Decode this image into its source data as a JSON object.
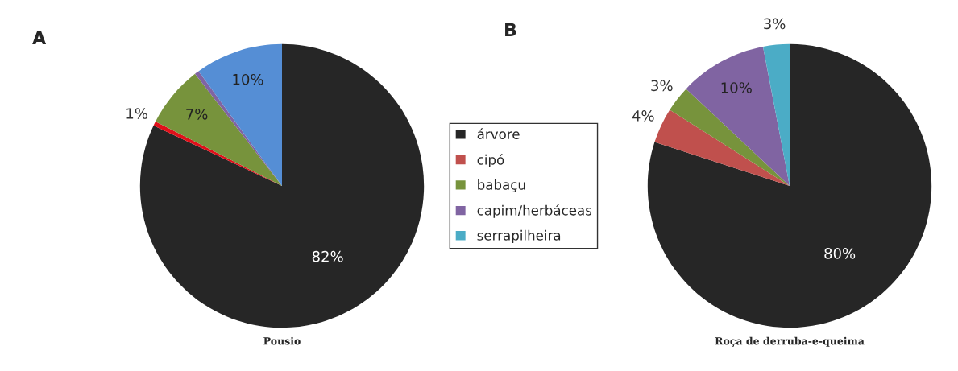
{
  "chart_data": [
    {
      "type": "pie",
      "title": "Pousio",
      "annotations": [
        "A"
      ],
      "categories": [
        null,
        null,
        null,
        null,
        null
      ],
      "values": [
        82,
        0.5,
        7,
        0.5,
        10
      ],
      "value_labels": [
        "82%",
        "1%",
        "7%",
        null,
        "10%"
      ],
      "colors": [
        "#262626",
        "#e0101a",
        "#77933c",
        "#8064a2",
        "#558ed5"
      ],
      "legend": false
    },
    {
      "type": "pie",
      "title": "Roça de derruba-e-queima",
      "annotations": [
        "B"
      ],
      "categories": [
        "árvore",
        "cipó",
        "babaçu",
        "capim/herbáceas",
        "serrapilheira"
      ],
      "values": [
        80,
        4,
        3,
        10,
        3
      ],
      "value_labels": [
        "80%",
        "4%",
        "3%",
        "10%",
        "3%"
      ],
      "colors": [
        "#262626",
        "#c0504d",
        "#77933c",
        "#8064a2",
        "#4bacc6"
      ],
      "legend": "left"
    }
  ]
}
